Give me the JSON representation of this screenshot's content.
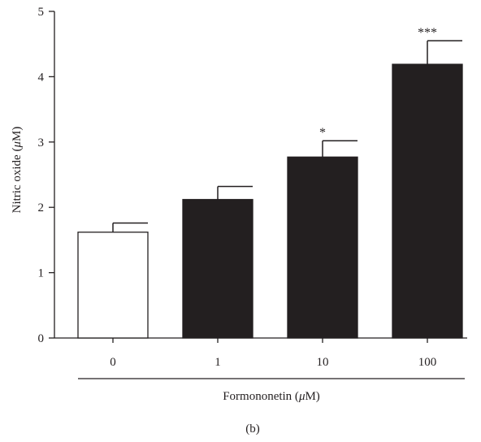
{
  "chart_data": {
    "type": "bar",
    "categories": [
      "0",
      "1",
      "10",
      "100"
    ],
    "values": [
      1.62,
      2.12,
      2.77,
      4.19
    ],
    "errors": [
      0.14,
      0.2,
      0.25,
      0.36
    ],
    "significance": [
      "",
      "",
      "*",
      "***"
    ],
    "bar_colors": [
      "#ffffff",
      "#231f20",
      "#231f20",
      "#231f20"
    ],
    "title": "",
    "xlabel_prefix": "Formononetin (",
    "xlabel_unit": "μ",
    "xlabel_suffix": "M)",
    "ylabel_prefix": "Nitric oxide (",
    "ylabel_unit": "μ",
    "ylabel_suffix": "M)",
    "ylim": [
      0,
      5
    ],
    "yticks": [
      "0",
      "1",
      "2",
      "3",
      "4",
      "5"
    ],
    "panel_label": "(b)",
    "grid": false,
    "legend": "none"
  }
}
